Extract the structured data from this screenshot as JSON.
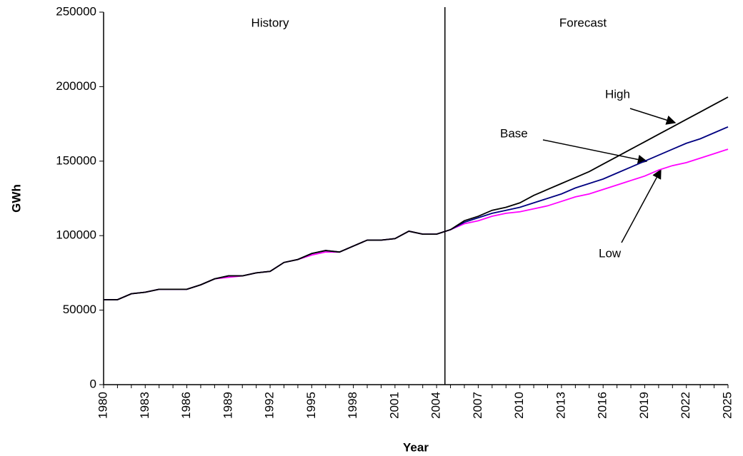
{
  "chart_data": {
    "type": "line",
    "xlabel": "Year",
    "ylabel": "GWh",
    "regions": [
      "History",
      "Forecast"
    ],
    "divider_x": 2004.6,
    "x": [
      1980,
      1981,
      1982,
      1983,
      1984,
      1985,
      1986,
      1987,
      1988,
      1989,
      1990,
      1991,
      1992,
      1993,
      1994,
      1995,
      1996,
      1997,
      1998,
      1999,
      2000,
      2001,
      2002,
      2003,
      2004,
      2005,
      2006,
      2007,
      2008,
      2009,
      2010,
      2011,
      2012,
      2013,
      2014,
      2015,
      2016,
      2017,
      2018,
      2019,
      2020,
      2021,
      2022,
      2023,
      2024,
      2025
    ],
    "series": [
      {
        "name": "High",
        "color": "#000000",
        "values": [
          57000,
          57000,
          61000,
          62000,
          64000,
          64000,
          64000,
          67000,
          71000,
          73000,
          73000,
          75000,
          76000,
          82000,
          84000,
          88000,
          90000,
          89000,
          93000,
          97000,
          97000,
          98000,
          103000,
          101000,
          101000,
          104000,
          110000,
          113000,
          117000,
          119000,
          122000,
          127000,
          131000,
          135000,
          139000,
          143000,
          148000,
          153000,
          158000,
          163000,
          168000,
          173000,
          178000,
          183000,
          188000,
          193000
        ]
      },
      {
        "name": "Base",
        "color": "#000080",
        "values": [
          57000,
          57000,
          61000,
          62000,
          64000,
          64000,
          64000,
          67000,
          71000,
          73000,
          73000,
          75000,
          76000,
          82000,
          84000,
          88000,
          90000,
          89000,
          93000,
          97000,
          97000,
          98000,
          103000,
          101000,
          101000,
          104000,
          109000,
          112000,
          115000,
          117000,
          119000,
          122000,
          125000,
          128000,
          132000,
          135000,
          138000,
          142000,
          146000,
          150000,
          154000,
          158000,
          162000,
          165000,
          169000,
          173000
        ]
      },
      {
        "name": "Low",
        "color": "#ff00ff",
        "values": [
          57000,
          57000,
          61000,
          62000,
          64000,
          64000,
          64000,
          67000,
          71000,
          72000,
          73000,
          75000,
          76000,
          82000,
          84000,
          87000,
          89000,
          89000,
          93000,
          97000,
          97000,
          98000,
          103000,
          101000,
          101000,
          104000,
          108000,
          110000,
          113000,
          115000,
          116000,
          118000,
          120000,
          123000,
          126000,
          128000,
          131000,
          134000,
          137000,
          140000,
          144000,
          147000,
          149000,
          152000,
          155000,
          158000
        ]
      }
    ],
    "xlim": [
      1980,
      2025
    ],
    "xticks": [
      1980,
      1983,
      1986,
      1989,
      1992,
      1995,
      1998,
      2001,
      2004,
      2007,
      2010,
      2013,
      2016,
      2019,
      2022,
      2025
    ],
    "ylim": [
      0,
      250000
    ],
    "yticks": [
      0,
      50000,
      100000,
      150000,
      200000,
      250000
    ],
    "grid": false
  }
}
